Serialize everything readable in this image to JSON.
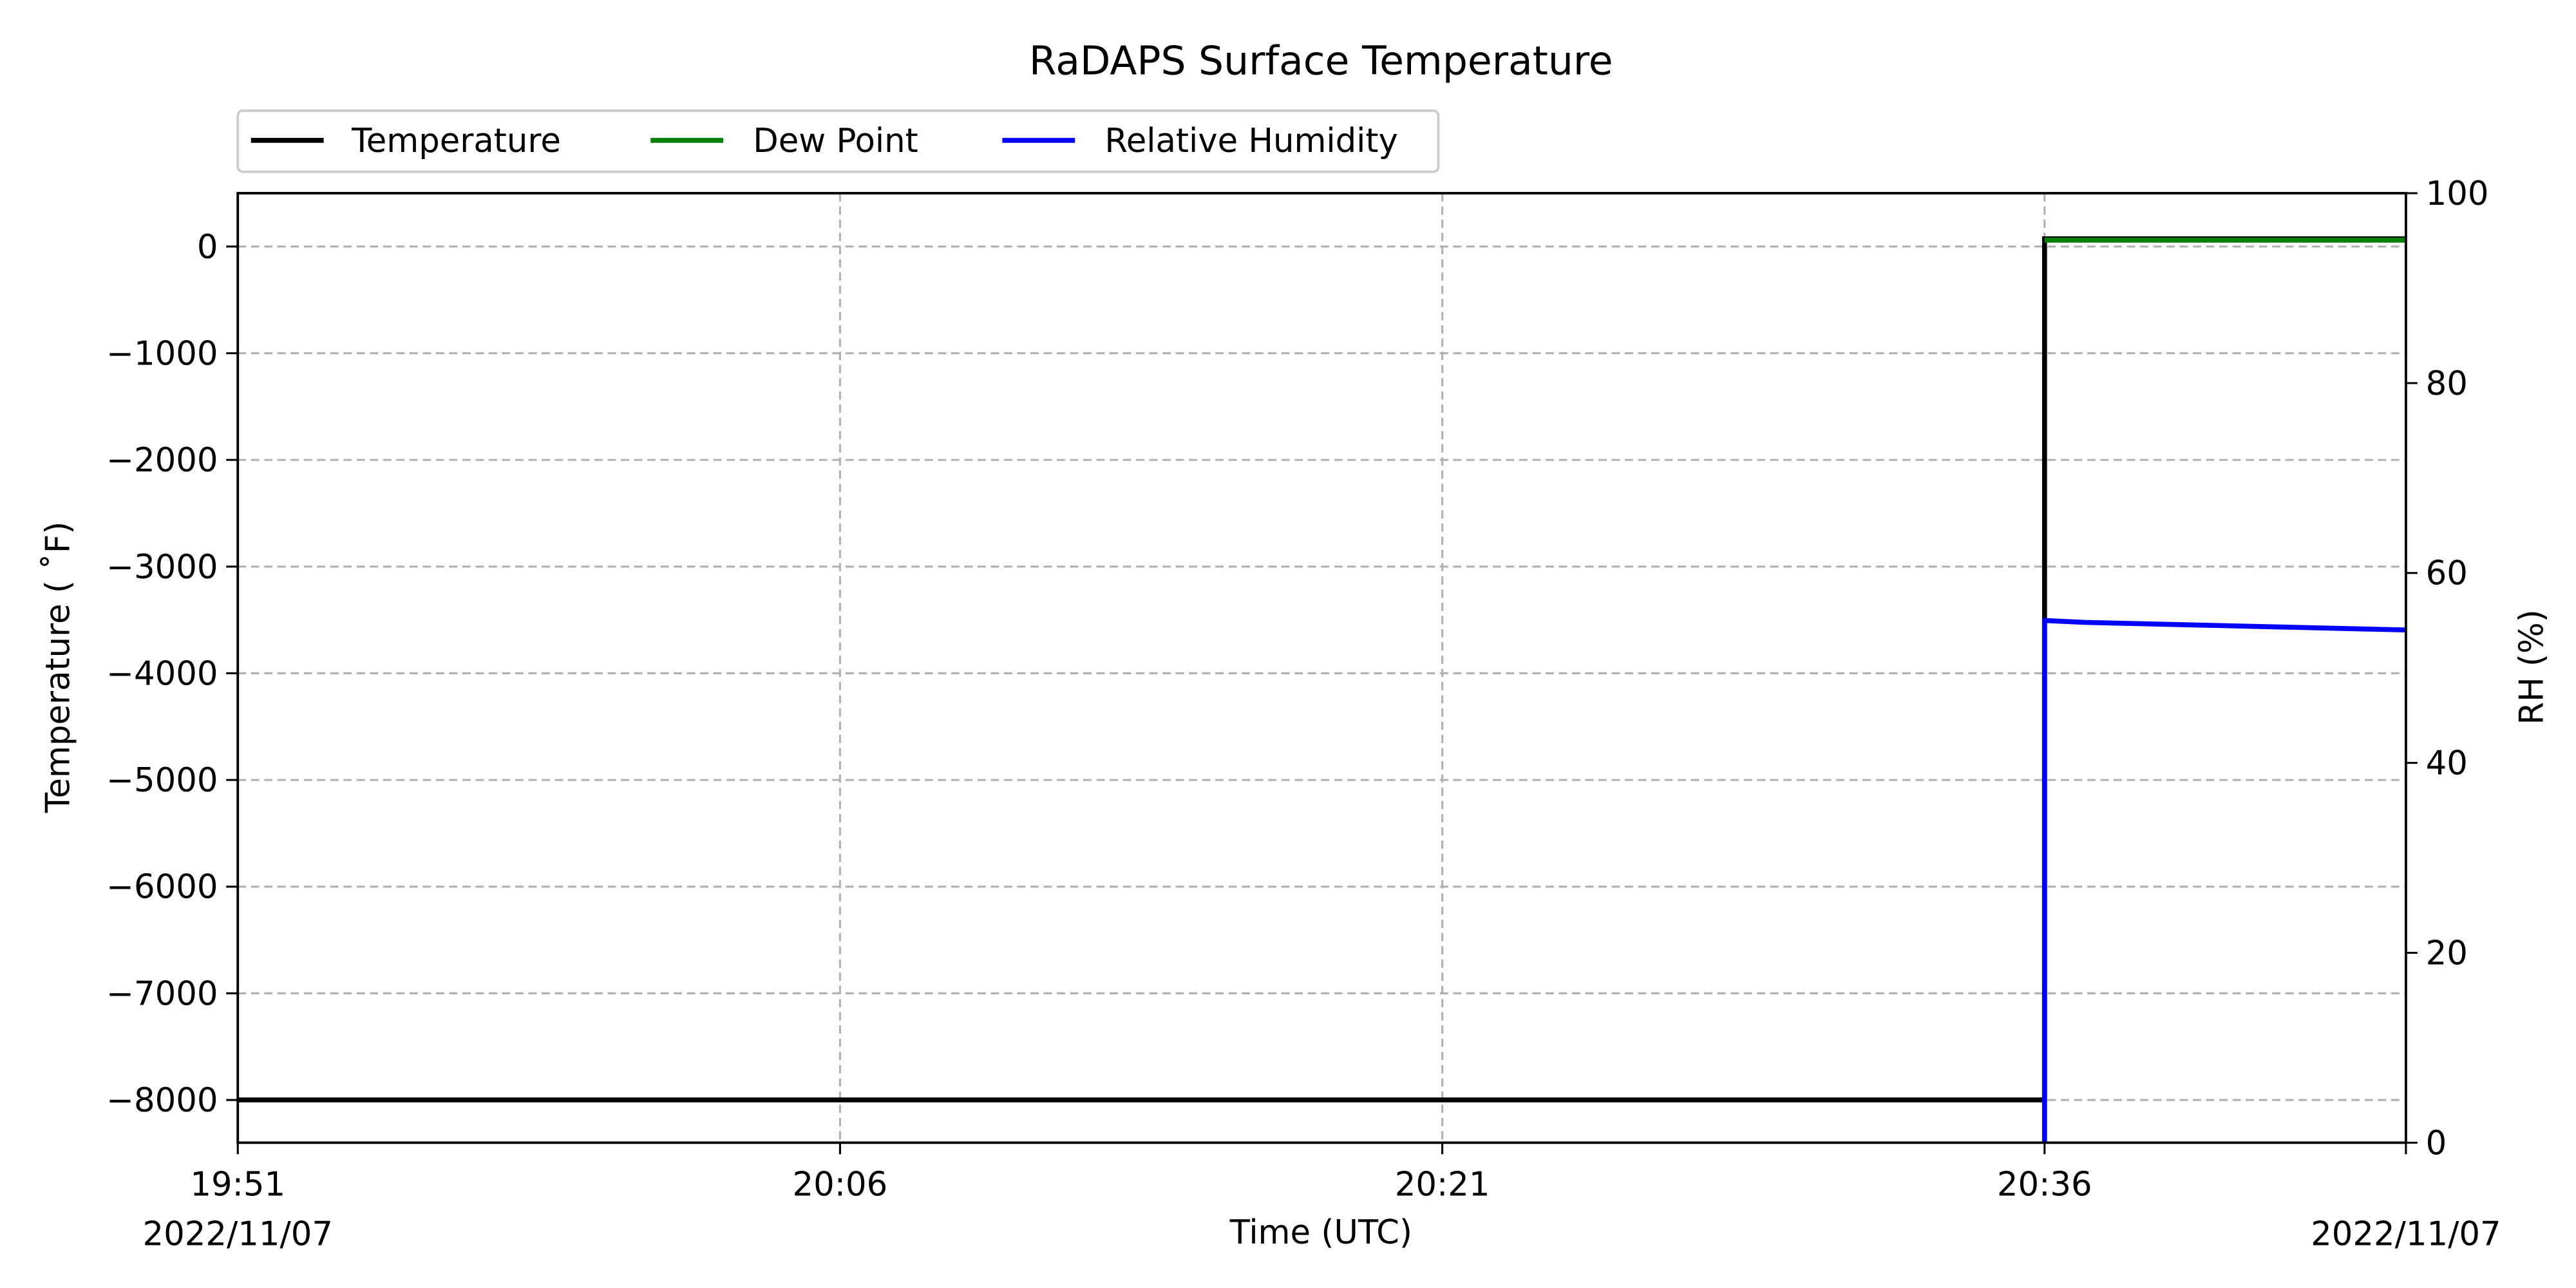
{
  "chart_data": {
    "type": "line",
    "title": "RaDAPS Surface Temperature",
    "xlabel": "Time (UTC)",
    "ylabel": "Temperature ($^\\circ$F)",
    "ylabel_display": "Temperature ( ˚F)",
    "y2label": "RH (%)",
    "xlim": [
      "19:51",
      "20:45"
    ],
    "x_ticks": [
      "19:51",
      "20:06",
      "20:21",
      "20:36"
    ],
    "x_start_date": "2022/11/07",
    "x_end_date": "2022/11/07",
    "ylim": [
      -8400,
      500
    ],
    "y_ticks": [
      "0",
      "−1000",
      "−2000",
      "−3000",
      "−4000",
      "−5000",
      "−6000",
      "−7000",
      "−8000"
    ],
    "y_tick_values": [
      0,
      -1000,
      -2000,
      -3000,
      -4000,
      -5000,
      -6000,
      -7000,
      -8000
    ],
    "y2lim": [
      0,
      100
    ],
    "y2_ticks": [
      "0",
      "20",
      "40",
      "60",
      "80",
      "100"
    ],
    "y2_tick_values": [
      0,
      20,
      40,
      60,
      80,
      100
    ],
    "grid": true,
    "legend_position": "top-left, above plot",
    "series": [
      {
        "name": "Temperature",
        "axis": "left",
        "color": "#000000",
        "x": [
          "19:51",
          "20:36",
          "20:36",
          "20:45"
        ],
        "values": [
          -7999,
          -7999,
          72,
          72
        ]
      },
      {
        "name": "Dew Point",
        "axis": "left",
        "color": "#008000",
        "x": [
          "20:36",
          "20:45"
        ],
        "values": [
          60,
          60
        ]
      },
      {
        "name": "Relative Humidity",
        "axis": "right",
        "color": "#0000ff",
        "x": [
          "20:36",
          "20:36",
          "20:37",
          "20:45"
        ],
        "values": [
          0,
          55,
          54.8,
          54.0
        ]
      }
    ]
  }
}
